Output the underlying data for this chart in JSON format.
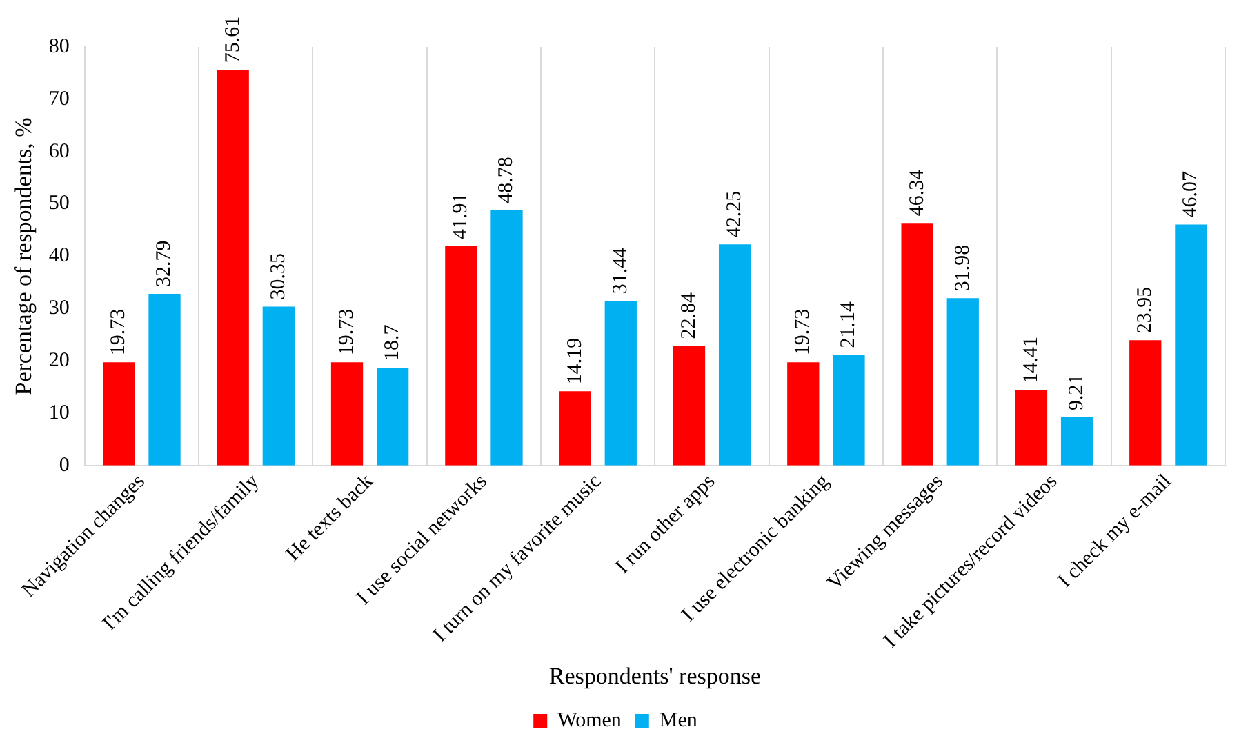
{
  "chart_data": {
    "type": "bar",
    "xlabel": "Respondents' response",
    "ylabel": "Percentage of respondents, %",
    "categories": [
      "Navigation changes",
      "I'm calling friends/family",
      "He texts back",
      "I use social networks",
      "I turn on my favorite music",
      "I run other apps",
      "I use electronic banking",
      "Viewing messages",
      "I take pictures/record videos",
      "I check my e-mail"
    ],
    "series": [
      {
        "name": "Women",
        "color": "#ff0000",
        "values": [
          19.73,
          75.61,
          19.73,
          41.91,
          14.19,
          22.84,
          19.73,
          46.34,
          14.41,
          23.95
        ]
      },
      {
        "name": "Men",
        "color": "#00b0f0",
        "values": [
          32.79,
          30.35,
          18.7,
          48.78,
          31.44,
          42.25,
          21.14,
          31.98,
          9.21,
          46.07
        ]
      }
    ],
    "ylim": [
      0,
      80
    ],
    "yticks": [
      0,
      10,
      20,
      30,
      40,
      50,
      60,
      70,
      80
    ],
    "grid": "x",
    "legend": "bottom",
    "data_labels": true
  }
}
